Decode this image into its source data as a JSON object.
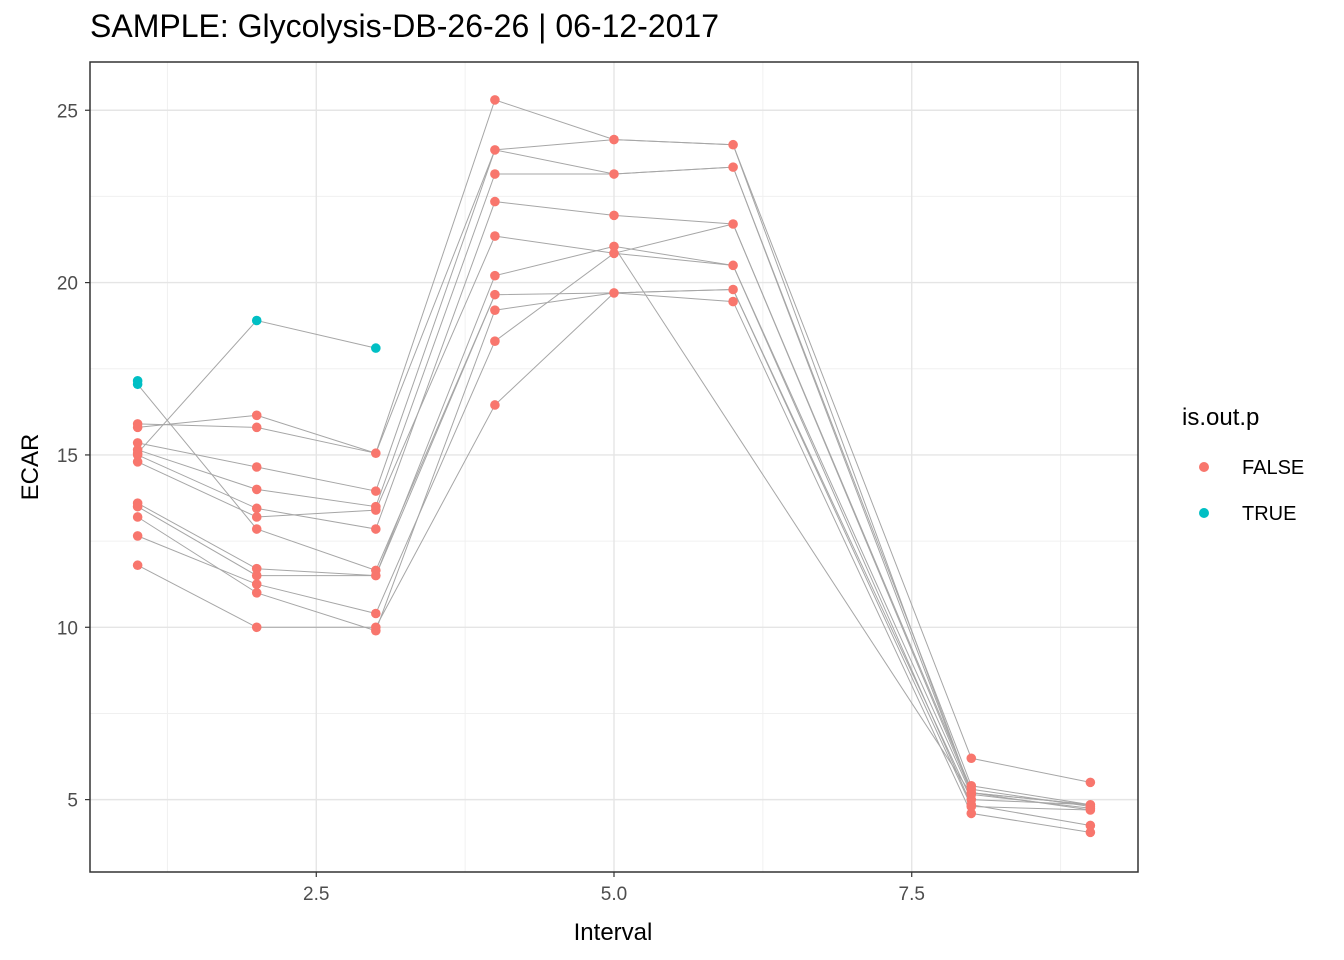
{
  "chart_data": {
    "type": "scatter",
    "title": "SAMPLE:  Glycolysis-DB-26-26 | 06-12-2017",
    "xlabel": "Interval",
    "ylabel": "ECAR",
    "xlim": [
      0.6,
      9.4
    ],
    "ylim": [
      2.9,
      26.4
    ],
    "x_ticks": [
      2.5,
      5.0,
      7.5
    ],
    "x_tick_labels": [
      "2.5",
      "5.0",
      "7.5"
    ],
    "y_ticks": [
      5,
      10,
      15,
      20,
      25
    ],
    "y_tick_labels": [
      "5",
      "10",
      "15",
      "20",
      "25"
    ],
    "grid": true,
    "legend": {
      "title": "is.out.p",
      "placement": "right",
      "entries": [
        {
          "label": "FALSE",
          "color": "#F8766D"
        },
        {
          "label": "TRUE",
          "color": "#00BFC4"
        }
      ]
    },
    "line_color": "#a6a6a6",
    "colors": {
      "FALSE": "#F8766D",
      "TRUE": "#00BFC4"
    },
    "series": [
      {
        "points": [
          [
            1,
            11.8
          ],
          [
            2,
            10.0
          ],
          [
            3,
            10.0
          ],
          [
            4,
            16.45
          ],
          [
            5,
            19.7
          ],
          [
            6,
            19.45
          ],
          [
            8,
            4.6
          ],
          [
            9,
            4.05
          ]
        ]
      },
      {
        "points": [
          [
            1,
            12.65
          ],
          [
            2,
            11.25
          ],
          [
            3,
            10.4
          ],
          [
            4,
            18.3
          ],
          [
            5,
            20.85
          ],
          [
            6,
            20.5
          ],
          [
            8,
            4.85
          ],
          [
            9,
            4.25
          ]
        ]
      },
      {
        "points": [
          [
            1,
            13.2
          ],
          [
            2,
            11.0
          ],
          [
            3,
            9.9
          ],
          [
            4,
            19.2
          ],
          [
            5,
            19.7
          ],
          [
            6,
            19.8
          ],
          [
            8,
            4.8
          ],
          [
            9,
            4.7
          ]
        ]
      },
      {
        "points": [
          [
            1,
            13.5
          ],
          [
            2,
            11.5
          ],
          [
            3,
            11.5
          ],
          [
            4,
            19.65
          ],
          [
            5,
            19.7
          ],
          [
            6,
            19.8
          ],
          [
            8,
            5.0
          ],
          [
            9,
            4.85
          ]
        ]
      },
      {
        "points": [
          [
            1,
            13.6
          ],
          [
            2,
            11.7
          ],
          [
            3,
            11.5
          ],
          [
            4,
            20.2
          ],
          [
            5,
            21.05
          ],
          [
            6,
            20.5
          ],
          [
            8,
            5.15
          ],
          [
            9,
            4.75
          ]
        ]
      },
      {
        "points": [
          [
            1,
            14.8
          ],
          [
            2,
            13.2
          ],
          [
            3,
            13.4
          ],
          [
            4,
            21.35
          ],
          [
            5,
            20.85
          ],
          [
            6,
            21.7
          ],
          [
            8,
            5.2
          ],
          [
            9,
            4.7
          ]
        ]
      },
      {
        "points": [
          [
            1,
            15.0
          ],
          [
            2,
            13.45
          ],
          [
            3,
            12.85
          ],
          [
            4,
            22.35
          ],
          [
            5,
            21.95
          ],
          [
            6,
            21.7
          ],
          [
            8,
            5.3
          ],
          [
            9,
            4.8
          ]
        ]
      },
      {
        "points": [
          [
            1,
            15.15
          ],
          [
            2,
            14.0
          ],
          [
            3,
            13.5
          ],
          [
            4,
            23.15
          ],
          [
            5,
            23.15
          ],
          [
            6,
            23.35
          ],
          [
            8,
            5.4
          ],
          [
            9,
            4.85
          ]
        ]
      },
      {
        "points": [
          [
            1,
            15.35
          ],
          [
            2,
            14.65
          ],
          [
            3,
            13.95
          ],
          [
            4,
            23.85
          ],
          [
            5,
            23.15
          ],
          [
            6,
            23.35
          ],
          [
            8,
            5.2
          ],
          [
            9,
            4.85
          ]
        ]
      },
      {
        "points": [
          [
            1,
            15.8
          ],
          [
            2,
            16.15
          ],
          [
            3,
            15.05
          ],
          [
            4,
            25.3
          ],
          [
            5,
            24.15
          ],
          [
            6,
            24.0
          ],
          [
            8,
            6.2
          ],
          [
            9,
            5.5
          ]
        ]
      },
      {
        "points": [
          [
            1,
            15.9
          ],
          [
            2,
            15.8
          ],
          [
            3,
            15.05
          ],
          [
            4,
            23.85
          ],
          [
            5,
            24.15
          ],
          [
            6,
            24.0
          ],
          [
            8,
            5.2
          ],
          [
            9,
            4.85
          ]
        ]
      },
      {
        "points": [
          [
            1,
            17.05
          ],
          [
            2,
            12.85
          ],
          [
            3,
            11.65
          ],
          [
            4,
            19.65
          ]
        ]
      },
      {
        "points": [
          [
            1,
            15.05
          ],
          [
            2,
            18.9
          ],
          [
            3,
            18.1
          ]
        ]
      },
      {
        "points": [
          [
            5,
            21.05
          ],
          [
            8,
            5.15
          ]
        ]
      }
    ],
    "outliers": [
      [
        1,
        17.15
      ],
      [
        1,
        17.05
      ],
      [
        2,
        18.9
      ],
      [
        3,
        18.1
      ]
    ]
  }
}
